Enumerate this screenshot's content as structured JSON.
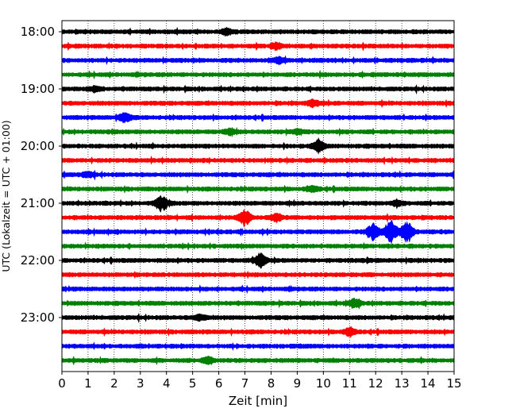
{
  "chart_data": {
    "type": "line",
    "title": "",
    "xlabel": "Zeit  [min]",
    "ylabel": "UTC (Lokalzeit = UTC + 01:00)",
    "xlim": [
      0,
      15
    ],
    "x_ticks": [
      "0",
      "1",
      "2",
      "3",
      "4",
      "5",
      "6",
      "7",
      "8",
      "9",
      "10",
      "11",
      "12",
      "13",
      "14",
      "15"
    ],
    "y_tick_labels": [
      "18:00",
      "19:00",
      "20:00",
      "21:00",
      "22:00",
      "23:00"
    ],
    "trace_interval_min": 15,
    "grid": "vertical dotted",
    "trace_colors": [
      "#000000",
      "#ff0000",
      "#0000ff",
      "#008000"
    ],
    "traces": [
      {
        "start": "18:00",
        "color": "#000000",
        "events": [
          {
            "t": 6.3,
            "amp": 0.4
          }
        ]
      },
      {
        "start": "18:15",
        "color": "#ff0000",
        "events": [
          {
            "t": 8.2,
            "amp": 0.35
          }
        ]
      },
      {
        "start": "18:30",
        "color": "#0000ff",
        "events": [
          {
            "t": 8.3,
            "amp": 0.35
          }
        ]
      },
      {
        "start": "18:45",
        "color": "#008000",
        "events": []
      },
      {
        "start": "19:00",
        "color": "#000000",
        "events": [
          {
            "t": 1.3,
            "amp": 0.3
          }
        ]
      },
      {
        "start": "19:15",
        "color": "#ff0000",
        "events": [
          {
            "t": 9.6,
            "amp": 0.4
          }
        ]
      },
      {
        "start": "19:30",
        "color": "#0000ff",
        "events": [
          {
            "t": 2.4,
            "amp": 0.6
          }
        ]
      },
      {
        "start": "19:45",
        "color": "#008000",
        "events": [
          {
            "t": 6.4,
            "amp": 0.35
          },
          {
            "t": 9.0,
            "amp": 0.3
          }
        ]
      },
      {
        "start": "20:00",
        "color": "#000000",
        "events": [
          {
            "t": 9.8,
            "amp": 0.8
          }
        ]
      },
      {
        "start": "20:15",
        "color": "#ff0000",
        "events": []
      },
      {
        "start": "20:30",
        "color": "#0000ff",
        "events": [
          {
            "t": 1.0,
            "amp": 0.3
          }
        ]
      },
      {
        "start": "20:45",
        "color": "#008000",
        "events": [
          {
            "t": 9.6,
            "amp": 0.3
          }
        ]
      },
      {
        "start": "21:00",
        "color": "#000000",
        "events": [
          {
            "t": 3.8,
            "amp": 0.9
          },
          {
            "t": 12.8,
            "amp": 0.3
          }
        ]
      },
      {
        "start": "21:15",
        "color": "#ff0000",
        "events": [
          {
            "t": 7.0,
            "amp": 1.1
          },
          {
            "t": 8.2,
            "amp": 0.4
          }
        ]
      },
      {
        "start": "21:30",
        "color": "#0000ff",
        "events": [
          {
            "t": 11.9,
            "amp": 1.1
          },
          {
            "t": 12.6,
            "amp": 1.5
          },
          {
            "t": 13.2,
            "amp": 1.3
          }
        ]
      },
      {
        "start": "21:45",
        "color": "#008000",
        "events": []
      },
      {
        "start": "22:00",
        "color": "#000000",
        "events": [
          {
            "t": 7.6,
            "amp": 0.9
          }
        ]
      },
      {
        "start": "22:15",
        "color": "#ff0000",
        "events": []
      },
      {
        "start": "22:30",
        "color": "#0000ff",
        "events": []
      },
      {
        "start": "22:45",
        "color": "#008000",
        "events": [
          {
            "t": 11.2,
            "amp": 0.6
          }
        ]
      },
      {
        "start": "23:00",
        "color": "#000000",
        "events": [
          {
            "t": 5.3,
            "amp": 0.35
          }
        ]
      },
      {
        "start": "23:15",
        "color": "#ff0000",
        "events": [
          {
            "t": 11.0,
            "amp": 0.45
          }
        ]
      },
      {
        "start": "23:30",
        "color": "#0000ff",
        "events": []
      },
      {
        "start": "23:45",
        "color": "#008000",
        "events": [
          {
            "t": 5.6,
            "amp": 0.45
          }
        ]
      }
    ]
  }
}
